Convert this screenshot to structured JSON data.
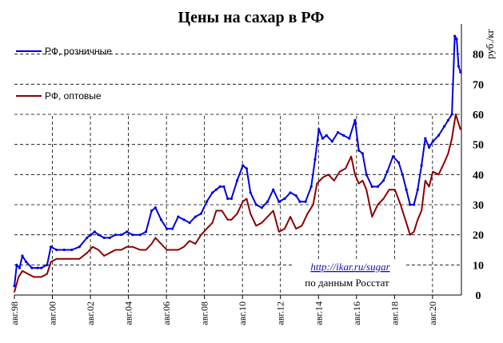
{
  "chart_data": {
    "type": "line",
    "title": "Цены на сахар в РФ",
    "ylabel": "руб./кг",
    "ylim": [
      0,
      90
    ],
    "yticks": [
      0,
      10,
      20,
      30,
      40,
      50,
      60,
      70,
      80
    ],
    "xlim": [
      1998.58,
      2022.1
    ],
    "xtick_labels": [
      "авг.98",
      "авг.00",
      "авг.02",
      "авг.04",
      "авг.06",
      "авг.08",
      "авг.10",
      "авг.12",
      "авг.14",
      "авг.16",
      "авг.18",
      "авг.20"
    ],
    "xtick_values": [
      1998.58,
      2000.58,
      2002.58,
      2004.58,
      2006.58,
      2008.58,
      2010.58,
      2012.58,
      2014.58,
      2016.58,
      2018.58,
      2020.58
    ],
    "grid": true,
    "legend": "top-left",
    "annotation_link": "http://ikar.ru/sugar",
    "annotation_source": "по данным  Росстат",
    "series": [
      {
        "name": "РФ, розничные",
        "color": "#0000dd",
        "x": [
          1998.58,
          1998.7,
          1998.85,
          1999.0,
          1999.2,
          1999.5,
          1999.8,
          2000.0,
          2000.3,
          2000.5,
          2000.8,
          2001.2,
          2001.6,
          2002.0,
          2002.4,
          2002.6,
          2002.8,
          2003.0,
          2003.3,
          2003.6,
          2003.9,
          2004.2,
          2004.5,
          2004.8,
          2005.2,
          2005.5,
          2005.8,
          2006.0,
          2006.3,
          2006.6,
          2006.9,
          2007.2,
          2007.5,
          2007.8,
          2008.1,
          2008.4,
          2008.7,
          2009.0,
          2009.2,
          2009.4,
          2009.6,
          2009.8,
          2010.0,
          2010.3,
          2010.6,
          2010.8,
          2011.0,
          2011.3,
          2011.6,
          2011.9,
          2012.2,
          2012.5,
          2012.8,
          2013.1,
          2013.4,
          2013.6,
          2013.9,
          2014.2,
          2014.4,
          2014.6,
          2014.8,
          2015.0,
          2015.3,
          2015.6,
          2015.9,
          2016.2,
          2016.5,
          2016.7,
          2016.9,
          2017.1,
          2017.4,
          2017.7,
          2018.0,
          2018.2,
          2018.5,
          2018.8,
          2019.0,
          2019.2,
          2019.4,
          2019.6,
          2019.8,
          2020.0,
          2020.2,
          2020.4,
          2020.6,
          2020.9,
          2021.2,
          2021.4,
          2021.6,
          2021.75,
          2021.85,
          2021.95,
          2022.05
        ],
        "y": [
          3,
          10,
          9,
          13,
          11,
          9,
          9,
          9,
          10,
          16,
          15,
          15,
          15,
          16,
          19,
          20,
          21,
          20,
          19,
          19,
          20,
          20,
          21,
          20,
          20,
          21,
          28,
          29,
          25,
          22,
          22,
          26,
          25,
          24,
          26,
          27,
          31,
          34,
          35,
          36,
          36,
          32,
          32,
          38,
          43,
          42,
          34,
          30,
          29,
          31,
          35,
          31,
          32,
          34,
          33,
          31,
          31,
          36,
          45,
          55,
          52,
          53,
          51,
          54,
          53,
          52,
          58,
          48,
          47,
          40,
          36,
          36,
          38,
          41,
          46,
          44,
          40,
          35,
          30,
          30,
          35,
          43,
          52,
          49,
          51,
          53,
          56,
          58,
          60,
          86,
          85,
          76,
          74
        ]
      },
      {
        "name": "РФ, оптовые",
        "color": "#8b0000",
        "x": [
          1998.58,
          1998.8,
          1999.0,
          1999.3,
          1999.6,
          2000.0,
          2000.3,
          2000.5,
          2000.8,
          2001.2,
          2001.6,
          2002.0,
          2002.4,
          2002.7,
          2003.0,
          2003.3,
          2003.6,
          2003.9,
          2004.2,
          2004.5,
          2004.8,
          2005.2,
          2005.5,
          2005.8,
          2006.0,
          2006.3,
          2006.6,
          2006.9,
          2007.2,
          2007.5,
          2007.8,
          2008.1,
          2008.4,
          2008.7,
          2009.0,
          2009.2,
          2009.5,
          2009.8,
          2010.0,
          2010.3,
          2010.6,
          2010.8,
          2011.0,
          2011.3,
          2011.6,
          2011.9,
          2012.2,
          2012.5,
          2012.8,
          2013.1,
          2013.4,
          2013.7,
          2014.0,
          2014.3,
          2014.5,
          2014.8,
          2015.1,
          2015.4,
          2015.7,
          2016.0,
          2016.3,
          2016.5,
          2016.7,
          2016.9,
          2017.1,
          2017.4,
          2017.7,
          2018.0,
          2018.3,
          2018.6,
          2018.9,
          2019.2,
          2019.4,
          2019.6,
          2019.8,
          2020.0,
          2020.2,
          2020.4,
          2020.6,
          2020.9,
          2021.2,
          2021.4,
          2021.6,
          2021.8,
          2021.95,
          2022.05
        ],
        "y": [
          1,
          6,
          8,
          7,
          6,
          6,
          7,
          11,
          12,
          12,
          12,
          12,
          14,
          16,
          15,
          13,
          14,
          15,
          15,
          16,
          16,
          15,
          15,
          17,
          19,
          17,
          15,
          15,
          15,
          16,
          18,
          17,
          20,
          22,
          24,
          28,
          28,
          25,
          25,
          27,
          31,
          32,
          27,
          23,
          24,
          26,
          28,
          21,
          22,
          26,
          22,
          23,
          27,
          30,
          37,
          39,
          40,
          38,
          41,
          42,
          46,
          40,
          37,
          38,
          35,
          26,
          30,
          32,
          35,
          35,
          30,
          24,
          20,
          21,
          25,
          28,
          38,
          36,
          41,
          40,
          44,
          47,
          52,
          60,
          57,
          55
        ]
      }
    ]
  }
}
